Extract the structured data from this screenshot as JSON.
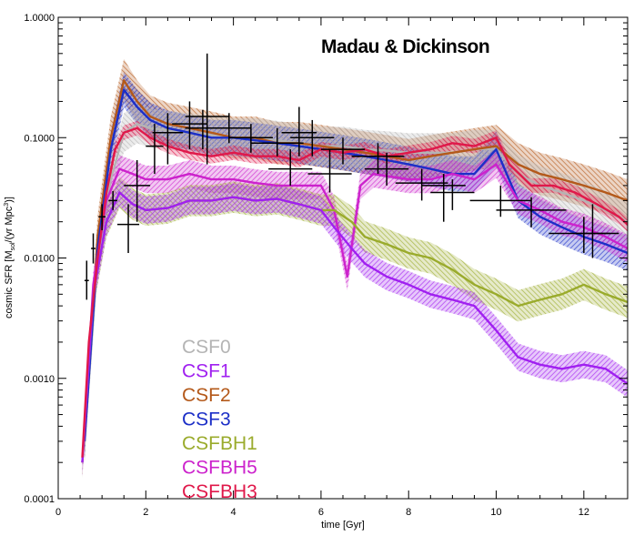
{
  "chart_data": {
    "type": "line",
    "title": "Madau & Dickinson",
    "xlabel": "time [Gyr]",
    "ylabel": "cosmic SFR [M",
    "ylabel_sub": "sol",
    "ylabel_mid": "/(yr Mpc",
    "ylabel_sup": "3",
    "ylabel_end": ")]",
    "xlim": [
      0,
      13
    ],
    "ylim": [
      0.0001,
      1.0
    ],
    "yscale": "log",
    "x_ticks": [
      0,
      2,
      4,
      6,
      8,
      10,
      12
    ],
    "x_tick_labels": [
      "0",
      "2",
      "4",
      "6",
      "8",
      "10",
      "12"
    ],
    "y_ticks": [
      0.0001,
      0.001,
      0.01,
      0.1,
      1.0
    ],
    "y_tick_labels": [
      "0.0001",
      "0.0010",
      "0.0100",
      "0.1000",
      "1.0000"
    ],
    "legend_position": "lower-left",
    "series": [
      {
        "name": "CSF0",
        "color": "#b4b4b4",
        "x": [
          0.6,
          0.9,
          1.2,
          1.5,
          1.8,
          2.1,
          2.5,
          3.0,
          3.5,
          4.0,
          4.5,
          5.0,
          5.5,
          6.0,
          6.5,
          7.0,
          7.5,
          8.0,
          8.5,
          9.0,
          9.5,
          10.0,
          10.5,
          11.0,
          11.5,
          12.0,
          12.5,
          13.0
        ],
        "values": [
          0.0003,
          0.01,
          0.045,
          0.11,
          0.13,
          0.12,
          0.115,
          0.11,
          0.105,
          0.1,
          0.1,
          0.095,
          0.09,
          0.085,
          0.085,
          0.08,
          0.078,
          0.075,
          0.075,
          0.075,
          0.08,
          0.08,
          0.05,
          0.04,
          0.035,
          0.03,
          0.025,
          0.02
        ],
        "spread": 1.45
      },
      {
        "name": "CSF1",
        "color": "#a020f0",
        "x": [
          0.55,
          0.8,
          1.1,
          1.4,
          1.7,
          2.0,
          2.5,
          3.0,
          3.5,
          4.0,
          4.5,
          5.0,
          5.5,
          6.0,
          6.3,
          6.7,
          7.0,
          7.5,
          8.0,
          8.5,
          9.0,
          9.5,
          10.0,
          10.5,
          11.0,
          11.5,
          12.0,
          12.5,
          13.0
        ],
        "values": [
          0.0002,
          0.005,
          0.02,
          0.035,
          0.028,
          0.025,
          0.026,
          0.03,
          0.03,
          0.032,
          0.03,
          0.031,
          0.028,
          0.025,
          0.018,
          0.012,
          0.009,
          0.007,
          0.006,
          0.005,
          0.0045,
          0.004,
          0.0025,
          0.0015,
          0.0013,
          0.0012,
          0.0013,
          0.0012,
          0.0009
        ],
        "spread": 1.3
      },
      {
        "name": "CSF2",
        "color": "#b4591a",
        "x": [
          0.6,
          0.9,
          1.2,
          1.5,
          1.8,
          2.1,
          2.5,
          3.0,
          3.5,
          4.0,
          4.5,
          5.0,
          5.5,
          6.0,
          6.5,
          7.0,
          7.5,
          8.0,
          8.5,
          9.0,
          9.5,
          10.0,
          10.5,
          11.0,
          11.5,
          12.0,
          12.5,
          13.0
        ],
        "values": [
          0.0003,
          0.015,
          0.1,
          0.3,
          0.2,
          0.15,
          0.13,
          0.12,
          0.11,
          0.1,
          0.1,
          0.09,
          0.09,
          0.085,
          0.08,
          0.075,
          0.07,
          0.065,
          0.07,
          0.075,
          0.08,
          0.085,
          0.06,
          0.05,
          0.045,
          0.04,
          0.035,
          0.03
        ],
        "spread": 1.5
      },
      {
        "name": "CSF3",
        "color": "#1c2fc7",
        "x": [
          0.6,
          0.9,
          1.2,
          1.5,
          1.8,
          2.1,
          2.5,
          3.0,
          3.5,
          4.0,
          4.5,
          5.0,
          5.5,
          6.0,
          6.5,
          7.0,
          7.5,
          8.0,
          8.5,
          9.0,
          9.5,
          10.0,
          10.5,
          11.0,
          11.5,
          12.0,
          12.5,
          13.0
        ],
        "values": [
          0.0003,
          0.012,
          0.08,
          0.25,
          0.18,
          0.14,
          0.12,
          0.11,
          0.1,
          0.1,
          0.095,
          0.09,
          0.085,
          0.08,
          0.075,
          0.07,
          0.065,
          0.06,
          0.055,
          0.05,
          0.05,
          0.08,
          0.03,
          0.022,
          0.018,
          0.015,
          0.013,
          0.011
        ],
        "spread": 1.4
      },
      {
        "name": "CSFBH1",
        "color": "#9aab2c",
        "x": [
          0.55,
          0.8,
          1.1,
          1.4,
          1.7,
          2.0,
          2.5,
          3.0,
          3.5,
          4.0,
          4.5,
          5.0,
          5.5,
          6.0,
          6.3,
          6.7,
          7.0,
          7.5,
          8.0,
          8.5,
          9.0,
          9.5,
          10.0,
          10.5,
          11.0,
          11.5,
          12.0,
          12.5,
          13.0
        ],
        "values": [
          0.0002,
          0.005,
          0.02,
          0.035,
          0.028,
          0.025,
          0.026,
          0.03,
          0.03,
          0.032,
          0.03,
          0.031,
          0.028,
          0.025,
          0.025,
          0.02,
          0.015,
          0.013,
          0.011,
          0.01,
          0.008,
          0.006,
          0.005,
          0.004,
          0.0045,
          0.005,
          0.006,
          0.005,
          0.0043
        ],
        "spread": 1.35
      },
      {
        "name": "CSFBH5",
        "color": "#cc22cc",
        "x": [
          0.55,
          0.8,
          1.1,
          1.4,
          1.7,
          2.0,
          2.5,
          3.0,
          3.5,
          4.0,
          4.5,
          5.0,
          5.5,
          6.0,
          6.3,
          6.6,
          6.9,
          7.2,
          7.5,
          8.0,
          8.5,
          9.0,
          9.5,
          10.0,
          10.5,
          11.0,
          11.5,
          12.0,
          12.5,
          13.0
        ],
        "values": [
          0.0002,
          0.006,
          0.03,
          0.055,
          0.05,
          0.045,
          0.045,
          0.05,
          0.045,
          0.045,
          0.042,
          0.04,
          0.04,
          0.04,
          0.025,
          0.007,
          0.04,
          0.05,
          0.048,
          0.045,
          0.045,
          0.05,
          0.045,
          0.06,
          0.03,
          0.025,
          0.02,
          0.018,
          0.015,
          0.012
        ],
        "spread": 1.3
      },
      {
        "name": "CSFBH3",
        "color": "#e0184a",
        "x": [
          0.55,
          0.7,
          0.9,
          1.1,
          1.3,
          1.5,
          1.8,
          2.1,
          2.5,
          3.0,
          3.5,
          4.0,
          4.5,
          5.0,
          5.5,
          6.0,
          6.5,
          7.0,
          7.5,
          8.0,
          8.5,
          9.0,
          9.5,
          10.0,
          10.3,
          10.8,
          11.3,
          11.8,
          12.3,
          12.8,
          13.0
        ],
        "values": [
          0.00022,
          0.002,
          0.01,
          0.035,
          0.08,
          0.11,
          0.12,
          0.1,
          0.085,
          0.075,
          0.07,
          0.075,
          0.07,
          0.07,
          0.065,
          0.08,
          0.075,
          0.08,
          0.07,
          0.075,
          0.08,
          0.09,
          0.085,
          0.1,
          0.06,
          0.04,
          0.04,
          0.035,
          0.028,
          0.022,
          0.019
        ],
        "spread": 1.15
      }
    ],
    "observations": [
      {
        "x": 0.65,
        "xerr": 0.05,
        "y": 0.0065,
        "ylo": 0.0045,
        "yhi": 0.0095
      },
      {
        "x": 0.8,
        "xerr": 0.05,
        "y": 0.012,
        "ylo": 0.009,
        "yhi": 0.016
      },
      {
        "x": 1.0,
        "xerr": 0.08,
        "y": 0.022,
        "ylo": 0.017,
        "yhi": 0.028
      },
      {
        "x": 1.25,
        "xerr": 0.1,
        "y": 0.03,
        "ylo": 0.025,
        "yhi": 0.036
      },
      {
        "x": 1.6,
        "xerr": 0.25,
        "y": 0.019,
        "ylo": 0.011,
        "yhi": 0.028
      },
      {
        "x": 1.8,
        "xerr": 0.3,
        "y": 0.04,
        "ylo": 0.02,
        "yhi": 0.065
      },
      {
        "x": 2.2,
        "xerr": 0.2,
        "y": 0.085,
        "ylo": 0.05,
        "yhi": 0.13
      },
      {
        "x": 2.5,
        "xerr": 0.35,
        "y": 0.11,
        "ylo": 0.06,
        "yhi": 0.16
      },
      {
        "x": 3.0,
        "xerr": 0.4,
        "y": 0.13,
        "ylo": 0.08,
        "yhi": 0.2
      },
      {
        "x": 3.4,
        "xerr": 0.5,
        "y": 0.15,
        "ylo": 0.06,
        "yhi": 0.5
      },
      {
        "x": 3.3,
        "xerr": 0.4,
        "y": 0.12,
        "ylo": 0.08,
        "yhi": 0.17
      },
      {
        "x": 3.9,
        "xerr": 0.5,
        "y": 0.12,
        "ylo": 0.09,
        "yhi": 0.16
      },
      {
        "x": 4.4,
        "xerr": 0.5,
        "y": 0.1,
        "ylo": 0.075,
        "yhi": 0.13
      },
      {
        "x": 5.0,
        "xerr": 0.6,
        "y": 0.09,
        "ylo": 0.07,
        "yhi": 0.12
      },
      {
        "x": 5.5,
        "xerr": 0.4,
        "y": 0.11,
        "ylo": 0.07,
        "yhi": 0.18
      },
      {
        "x": 5.8,
        "xerr": 0.5,
        "y": 0.1,
        "ylo": 0.07,
        "yhi": 0.14
      },
      {
        "x": 5.3,
        "xerr": 0.5,
        "y": 0.055,
        "ylo": 0.04,
        "yhi": 0.08
      },
      {
        "x": 6.2,
        "xerr": 0.5,
        "y": 0.05,
        "ylo": 0.035,
        "yhi": 0.08
      },
      {
        "x": 6.5,
        "xerr": 0.5,
        "y": 0.08,
        "ylo": 0.06,
        "yhi": 0.1
      },
      {
        "x": 7.3,
        "xerr": 0.6,
        "y": 0.07,
        "ylo": 0.05,
        "yhi": 0.09
      },
      {
        "x": 7.5,
        "xerr": 0.5,
        "y": 0.055,
        "ylo": 0.04,
        "yhi": 0.075
      },
      {
        "x": 8.3,
        "xerr": 0.6,
        "y": 0.042,
        "ylo": 0.03,
        "yhi": 0.055
      },
      {
        "x": 8.8,
        "xerr": 0.5,
        "y": 0.04,
        "ylo": 0.02,
        "yhi": 0.05
      },
      {
        "x": 9.0,
        "xerr": 0.5,
        "y": 0.035,
        "ylo": 0.025,
        "yhi": 0.045
      },
      {
        "x": 10.1,
        "xerr": 0.7,
        "y": 0.03,
        "ylo": 0.022,
        "yhi": 0.04
      },
      {
        "x": 10.8,
        "xerr": 0.8,
        "y": 0.025,
        "ylo": 0.018,
        "yhi": 0.032
      },
      {
        "x": 12.0,
        "xerr": 0.8,
        "y": 0.016,
        "ylo": 0.011,
        "yhi": 0.022
      },
      {
        "x": 12.2,
        "xerr": 0.4,
        "y": 0.016,
        "ylo": 0.01,
        "yhi": 0.028
      }
    ]
  }
}
